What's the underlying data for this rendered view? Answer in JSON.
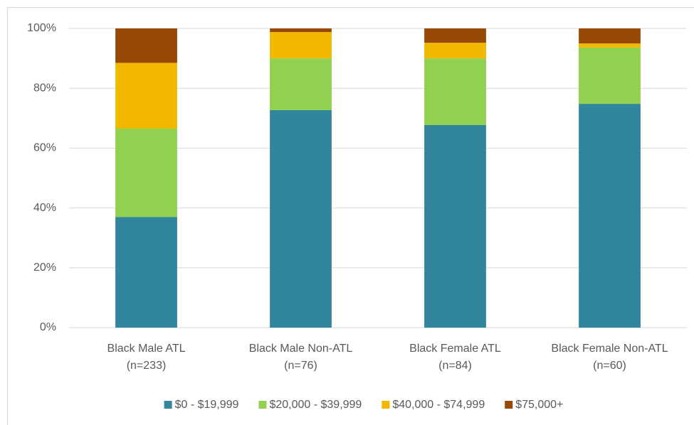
{
  "chart_data": {
    "type": "stacked_bar",
    "categories": [
      [
        "Black Male ATL",
        "(n=233)"
      ],
      [
        "Black Male Non-ATL",
        "(n=76)"
      ],
      [
        "Black Female ATL",
        "(n=84)"
      ],
      [
        "Black Female Non-ATL",
        "(n=60)"
      ]
    ],
    "series": [
      {
        "name": "$0 - $19,999",
        "color": "#31859c",
        "values": [
          37,
          72.7,
          67.7,
          74.8
        ]
      },
      {
        "name": "$20,000 - $39,999",
        "color": "#92d050",
        "values": [
          29.5,
          17.3,
          22.3,
          18.8
        ]
      },
      {
        "name": "$40,000 - $74,999",
        "color": "#f2b800",
        "values": [
          22,
          8.8,
          5.2,
          1.4
        ]
      },
      {
        "name": "$75,000+",
        "color": "#984807",
        "values": [
          11.5,
          1.2,
          4.8,
          5
        ]
      }
    ],
    "ylim": [
      0,
      100
    ],
    "yticks": [
      {
        "value": 0,
        "label": "0%"
      },
      {
        "value": 20,
        "label": "20%"
      },
      {
        "value": 40,
        "label": "40%"
      },
      {
        "value": 60,
        "label": "60%"
      },
      {
        "value": 80,
        "label": "80%"
      },
      {
        "value": 100,
        "label": "100%"
      }
    ],
    "grid": true,
    "legend": "bottom"
  }
}
